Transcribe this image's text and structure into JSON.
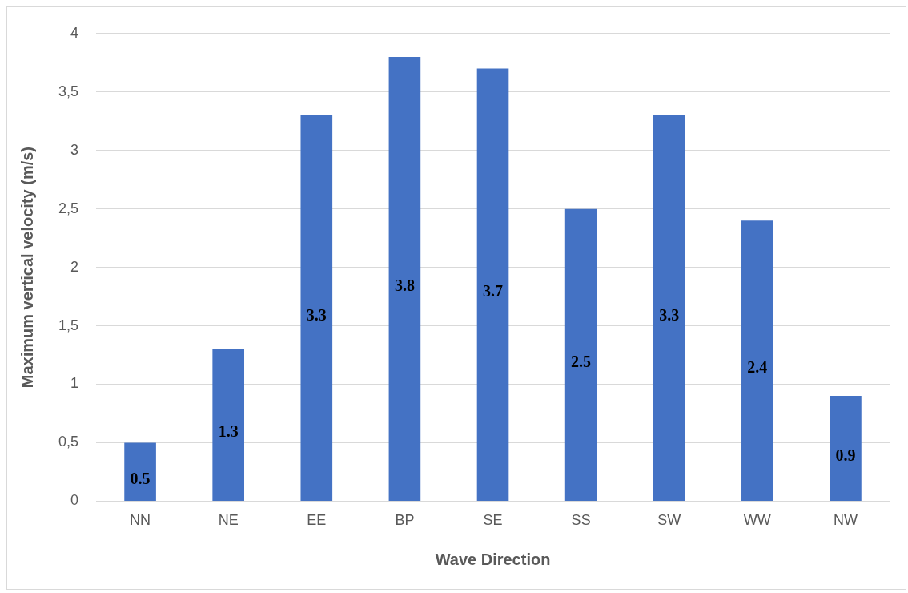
{
  "chart_data": {
    "type": "bar",
    "xlabel": "Wave Direction",
    "ylabel": "Maximum vertical velocity (m/s)",
    "categories": [
      "NN",
      "NE",
      "EE",
      "BP",
      "SE",
      "SS",
      "SW",
      "WW",
      "NW"
    ],
    "values": [
      0.5,
      1.3,
      3.3,
      3.8,
      3.7,
      2.5,
      3.3,
      2.4,
      0.9
    ],
    "color": "#4472c4",
    "ylim": [
      0,
      4
    ],
    "yticks": [
      0,
      {
        "value": 0.5,
        "label": "0,5"
      },
      1,
      {
        "value": 1.5,
        "label": "1,5"
      },
      2,
      {
        "value": 2.5,
        "label": "2,5"
      },
      3,
      {
        "value": 3.5,
        "label": "3,5"
      },
      4
    ],
    "grid": "y",
    "legend": false,
    "data_labels": true
  }
}
